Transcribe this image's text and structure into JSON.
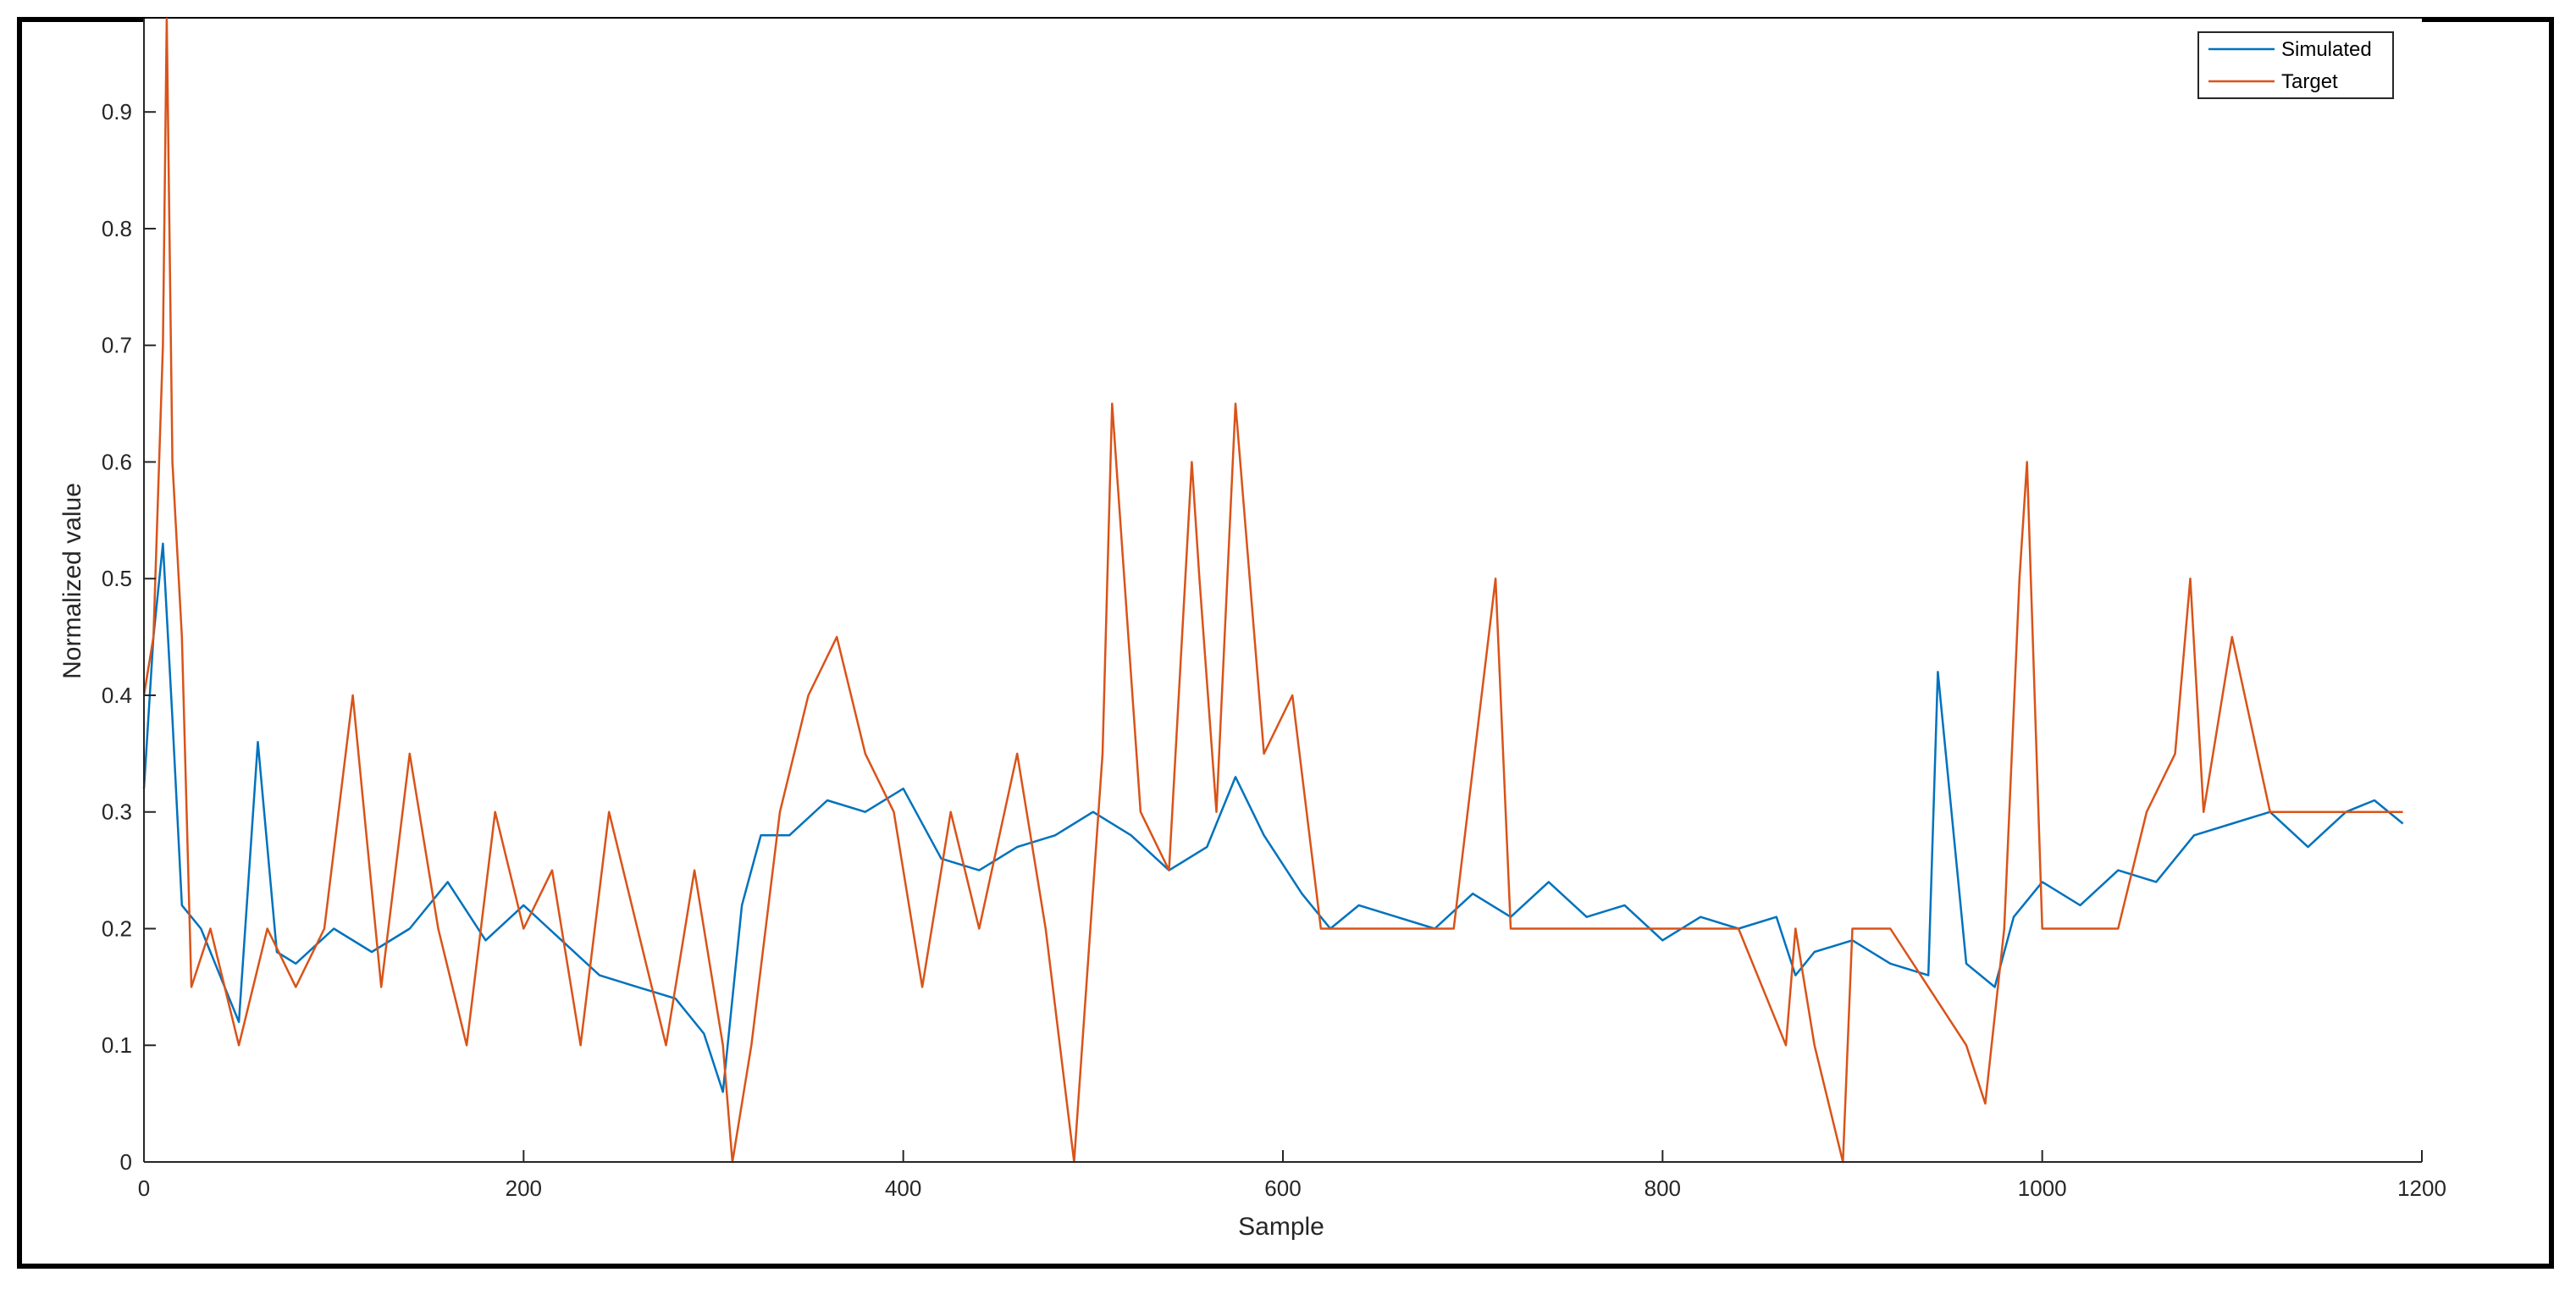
{
  "chart_data": {
    "type": "line",
    "xlabel": "Sample",
    "ylabel": "Normalized value",
    "xlim": [
      0,
      1200
    ],
    "ylim": [
      0,
      0.98
    ],
    "x_ticks": [
      "0",
      "200",
      "400",
      "600",
      "800",
      "1000",
      "1200"
    ],
    "y_ticks": [
      "0",
      "0.1",
      "0.2",
      "0.3",
      "0.4",
      "0.5",
      "0.6",
      "0.7",
      "0.8",
      "0.9"
    ],
    "grid": false,
    "legend_position": "top-right",
    "series": [
      {
        "name": "Simulated",
        "color": "#0072BD",
        "x": [
          0,
          5,
          10,
          15,
          20,
          30,
          40,
          50,
          60,
          70,
          80,
          100,
          120,
          140,
          160,
          180,
          200,
          220,
          240,
          260,
          280,
          295,
          305,
          315,
          325,
          340,
          360,
          380,
          400,
          420,
          440,
          460,
          480,
          500,
          520,
          540,
          560,
          575,
          590,
          610,
          625,
          640,
          660,
          680,
          700,
          720,
          740,
          760,
          780,
          800,
          820,
          840,
          860,
          870,
          880,
          900,
          920,
          940,
          945,
          960,
          975,
          985,
          1000,
          1020,
          1040,
          1060,
          1080,
          1100,
          1120,
          1140,
          1160,
          1175,
          1190
        ],
        "y": [
          0.32,
          0.45,
          0.53,
          0.38,
          0.22,
          0.2,
          0.16,
          0.12,
          0.36,
          0.18,
          0.17,
          0.2,
          0.18,
          0.2,
          0.24,
          0.19,
          0.22,
          0.19,
          0.16,
          0.15,
          0.14,
          0.11,
          0.06,
          0.22,
          0.28,
          0.28,
          0.31,
          0.3,
          0.32,
          0.26,
          0.25,
          0.27,
          0.28,
          0.3,
          0.28,
          0.25,
          0.27,
          0.33,
          0.28,
          0.23,
          0.2,
          0.22,
          0.21,
          0.2,
          0.23,
          0.21,
          0.24,
          0.21,
          0.22,
          0.19,
          0.21,
          0.2,
          0.21,
          0.16,
          0.18,
          0.19,
          0.17,
          0.16,
          0.42,
          0.17,
          0.15,
          0.21,
          0.24,
          0.22,
          0.25,
          0.24,
          0.28,
          0.29,
          0.3,
          0.27,
          0.3,
          0.31,
          0.29
        ]
      },
      {
        "name": "Target",
        "color": "#D95319",
        "x": [
          0,
          5,
          10,
          12,
          15,
          20,
          25,
          35,
          50,
          65,
          80,
          95,
          110,
          125,
          140,
          155,
          170,
          185,
          200,
          215,
          230,
          245,
          260,
          275,
          290,
          305,
          310,
          320,
          335,
          350,
          365,
          380,
          395,
          410,
          425,
          440,
          460,
          475,
          490,
          505,
          510,
          525,
          540,
          552,
          556,
          565,
          575,
          590,
          605,
          620,
          650,
          670,
          690,
          712,
          720,
          740,
          760,
          780,
          800,
          820,
          840,
          865,
          870,
          880,
          895,
          900,
          920,
          940,
          960,
          970,
          980,
          988,
          992,
          1000,
          1020,
          1040,
          1055,
          1070,
          1078,
          1085,
          1100,
          1120,
          1140,
          1160,
          1190
        ],
        "y": [
          0.4,
          0.45,
          0.7,
          0.98,
          0.6,
          0.45,
          0.15,
          0.2,
          0.1,
          0.2,
          0.15,
          0.2,
          0.4,
          0.15,
          0.35,
          0.2,
          0.1,
          0.3,
          0.2,
          0.25,
          0.1,
          0.3,
          0.2,
          0.1,
          0.25,
          0.1,
          0.0,
          0.1,
          0.3,
          0.4,
          0.45,
          0.35,
          0.3,
          0.15,
          0.3,
          0.2,
          0.35,
          0.2,
          0.0,
          0.35,
          0.65,
          0.3,
          0.25,
          0.6,
          0.5,
          0.3,
          0.65,
          0.35,
          0.4,
          0.2,
          0.2,
          0.2,
          0.2,
          0.5,
          0.2,
          0.2,
          0.2,
          0.2,
          0.2,
          0.2,
          0.2,
          0.1,
          0.2,
          0.1,
          0.0,
          0.2,
          0.2,
          0.15,
          0.1,
          0.05,
          0.2,
          0.5,
          0.6,
          0.2,
          0.2,
          0.2,
          0.3,
          0.35,
          0.5,
          0.3,
          0.45,
          0.3,
          0.3,
          0.3,
          0.3
        ]
      }
    ]
  }
}
